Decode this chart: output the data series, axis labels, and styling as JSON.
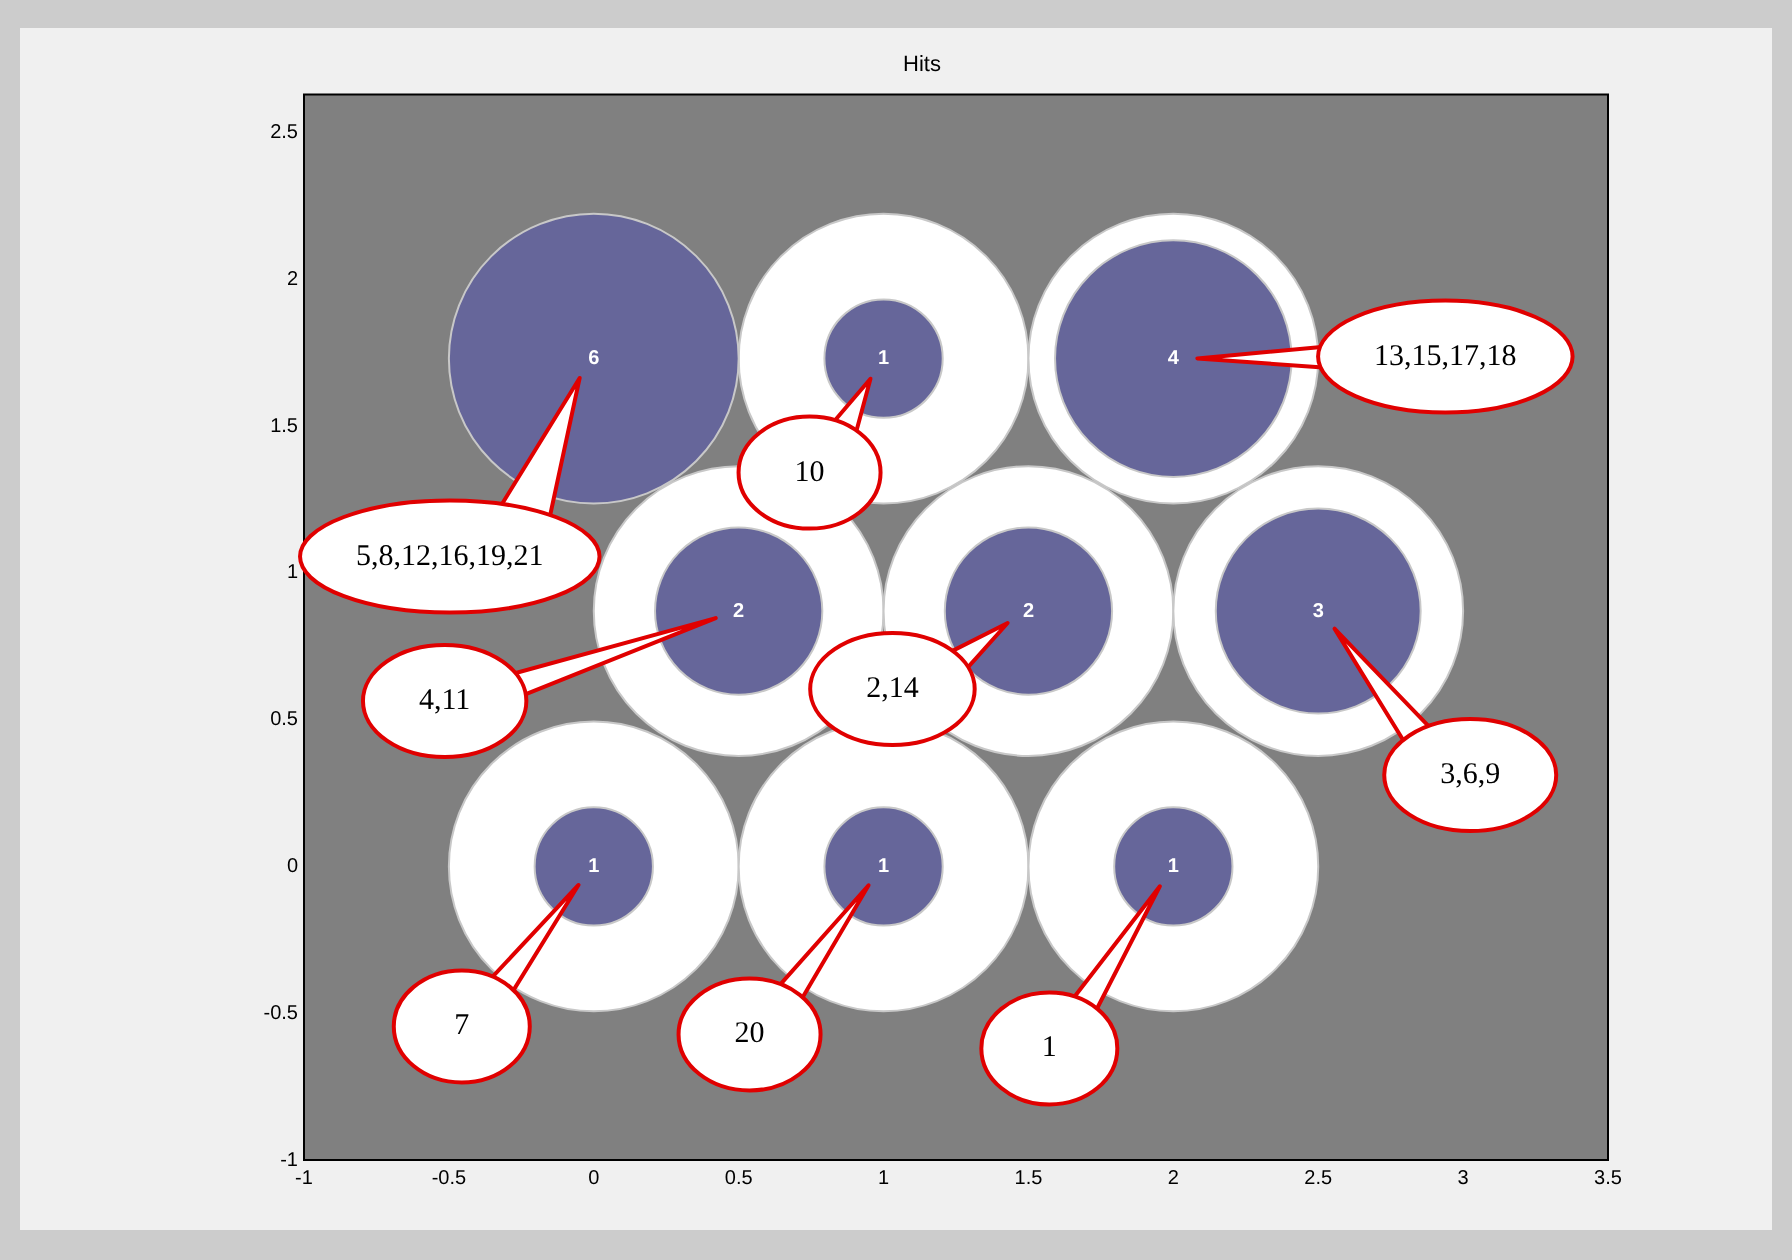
{
  "chart_data": {
    "type": "bubble",
    "title": "Hits",
    "xlim": [
      -1,
      3.5
    ],
    "xticks": [
      -1,
      -0.5,
      0,
      0.5,
      1,
      1.5,
      2,
      2.5,
      3,
      3.5
    ],
    "ylim": [
      -1,
      2.63
    ],
    "yticks": [
      -1,
      -0.5,
      0,
      0.5,
      1,
      1.5,
      2,
      2.5
    ],
    "legend": false,
    "x": [
      0,
      1,
      2,
      0.5,
      1.5,
      2.5,
      0,
      1,
      2
    ],
    "series": [
      {
        "type": "scatter",
        "color": "#ffffff",
        "values": [
          null,
          1.73,
          1.73,
          0.87,
          0.87,
          0.87,
          0,
          0,
          0
        ]
      },
      {
        "color": "#66669a",
        "values": [
          1.73,
          1.73,
          1.73,
          0.87,
          0.87,
          0.87,
          0,
          0,
          0
        ],
        "sizes": [
          6,
          1,
          4,
          2,
          2,
          3,
          1,
          1,
          1
        ],
        "value_labels": [
          "6",
          "1",
          "4",
          "2",
          "2",
          "3",
          "1",
          "1",
          "1"
        ]
      }
    ],
    "annotations": [
      "5,8,12,16,19,21",
      "10",
      "13,15,17,18",
      "4,11",
      "2,14",
      "3,6,9",
      "7",
      "20",
      "1"
    ]
  }
}
